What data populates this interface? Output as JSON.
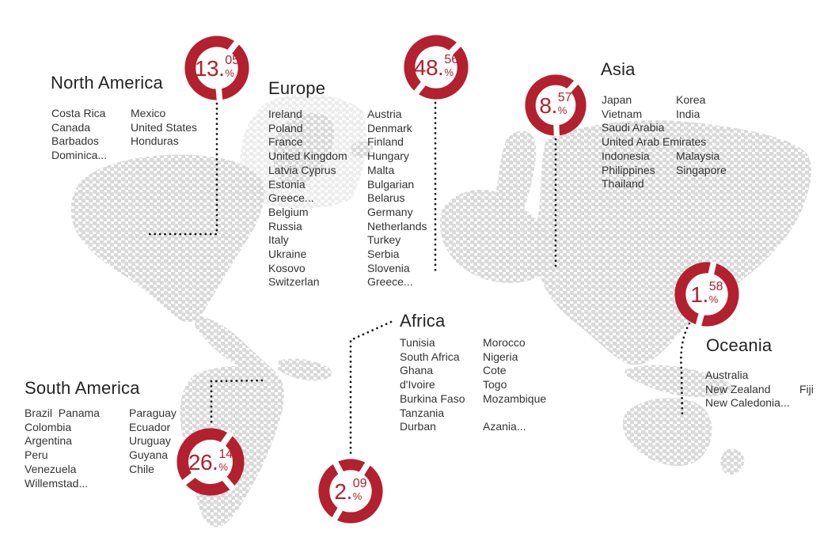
{
  "colors": {
    "accent_red": "#b3202e",
    "map_dots": "#d8d8d8",
    "map_dots_faint": "#ececec",
    "connector": "#171717",
    "text": "#333333"
  },
  "regions": [
    {
      "name": "North America",
      "donut": {
        "value": "13.",
        "decimals": "05",
        "unit": "%"
      },
      "columns": [
        [
          "Costa Rica",
          "Canada",
          "Barbados",
          "Dominica..."
        ],
        [
          "Mexico",
          "United States",
          "Honduras"
        ]
      ]
    },
    {
      "name": "Europe",
      "donut": {
        "value": "48.",
        "decimals": "56",
        "unit": "%"
      },
      "columns": [
        [
          "Ireland",
          "Poland",
          "France",
          "United Kingdom",
          "Latvia Cyprus",
          "Estonia",
          "Greece...",
          "Belgium",
          "Russia",
          "Italy",
          "Ukraine",
          "Kosovo",
          "Switzerlan"
        ],
        [
          "Austria",
          "Denmark",
          "Finland",
          "Hungary",
          "Malta",
          "Bulgarian",
          "Belarus",
          "Germany",
          "Netherlands",
          "Turkey",
          "Serbia",
          "Slovenia",
          "Greece..."
        ]
      ]
    },
    {
      "name": "Asia",
      "donut": {
        "value": "8.",
        "decimals": "57",
        "unit": "%"
      },
      "columns": [
        [
          "Japan",
          "Vietnam",
          "Saudi Arabia",
          "United Arab Emirates",
          "Indonesia",
          "Philippines",
          "Thailand"
        ],
        [
          "Korea",
          "India",
          "",
          "",
          "Malaysia",
          "Singapore",
          ""
        ]
      ]
    },
    {
      "name": "Africa",
      "donut": {
        "value": "2.",
        "decimals": "09",
        "unit": "%"
      },
      "columns": [
        [
          "Tunisia",
          "South Africa",
          "Ghana",
          "d'Ivoire",
          "Burkina Faso",
          "Tanzania",
          "Durban"
        ],
        [
          "Morocco",
          "Nigeria",
          "Cote",
          "Togo",
          "Mozambique",
          "",
          "Azania..."
        ]
      ]
    },
    {
      "name": "South America",
      "donut": {
        "value": "26.",
        "decimals": "14",
        "unit": "%"
      },
      "columns": [
        [
          "Brazil  Panama",
          "Colombia",
          "Argentina",
          "Peru",
          "Venezuela",
          "Willemstad..."
        ],
        [
          "Paraguay",
          "Ecuador",
          "Uruguay",
          "Guyana",
          "Chile"
        ]
      ]
    },
    {
      "name": "Oceania",
      "donut": {
        "value": "1.",
        "decimals": "58",
        "unit": "%"
      },
      "columns": [
        [
          "Australia",
          "New Zealand",
          "New Caledonia..."
        ],
        [
          "",
          "Fiji",
          ""
        ]
      ]
    }
  ],
  "chart_data": {
    "type": "pie",
    "title": "",
    "categories": [
      "North America",
      "Europe",
      "Asia",
      "Africa",
      "South America",
      "Oceania"
    ],
    "values": [
      13.05,
      48.56,
      8.57,
      2.09,
      26.14,
      1.58
    ],
    "unit": "%",
    "legend_position": "none",
    "note": "percentages shown in red donut badges placed over a dotted world map"
  }
}
